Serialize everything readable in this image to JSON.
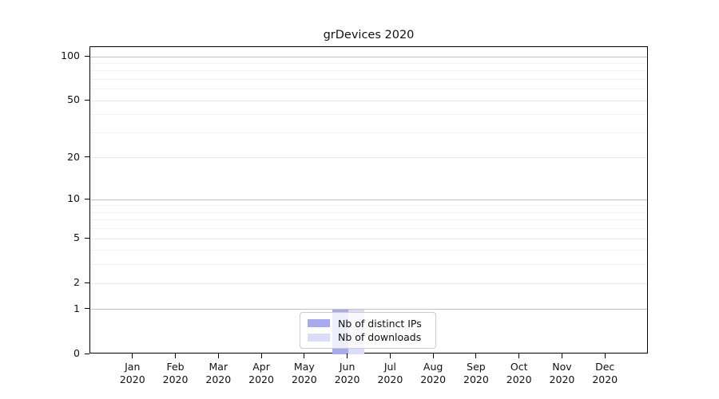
{
  "chart_data": {
    "type": "bar",
    "title": "grDevices 2020",
    "categories": [
      {
        "label": "Jan",
        "sublabel": "2020"
      },
      {
        "label": "Feb",
        "sublabel": "2020"
      },
      {
        "label": "Mar",
        "sublabel": "2020"
      },
      {
        "label": "Apr",
        "sublabel": "2020"
      },
      {
        "label": "May",
        "sublabel": "2020"
      },
      {
        "label": "Jun",
        "sublabel": "2020"
      },
      {
        "label": "Jul",
        "sublabel": "2020"
      },
      {
        "label": "Aug",
        "sublabel": "2020"
      },
      {
        "label": "Sep",
        "sublabel": "2020"
      },
      {
        "label": "Oct",
        "sublabel": "2020"
      },
      {
        "label": "Nov",
        "sublabel": "2020"
      },
      {
        "label": "Dec",
        "sublabel": "2020"
      }
    ],
    "series": [
      {
        "name": "Nb of distinct IPs",
        "color": "#a8aaee",
        "values": [
          0,
          0,
          0,
          0,
          0,
          1,
          0,
          0,
          0,
          0,
          0,
          0
        ]
      },
      {
        "name": "Nb of downloads",
        "color": "#dbdcf7",
        "values": [
          0,
          0,
          0,
          0,
          0,
          1,
          0,
          0,
          0,
          0,
          0,
          0
        ]
      }
    ],
    "yscale": "log1p",
    "ylim": [
      0,
      100
    ],
    "yticks": [
      0,
      1,
      2,
      5,
      10,
      20,
      50,
      100
    ],
    "yticks_minor": [
      3,
      4,
      6,
      7,
      8,
      9,
      30,
      40,
      60,
      70,
      80,
      90
    ],
    "grid": "horizontal",
    "legend_position": "lower center",
    "colors": {
      "grid_major": "#c3c3c3",
      "grid_mid": "#e7e7e7",
      "grid_minor": "#f2f2f2",
      "axis": "#000000",
      "legend_border": "#cccccc"
    }
  }
}
